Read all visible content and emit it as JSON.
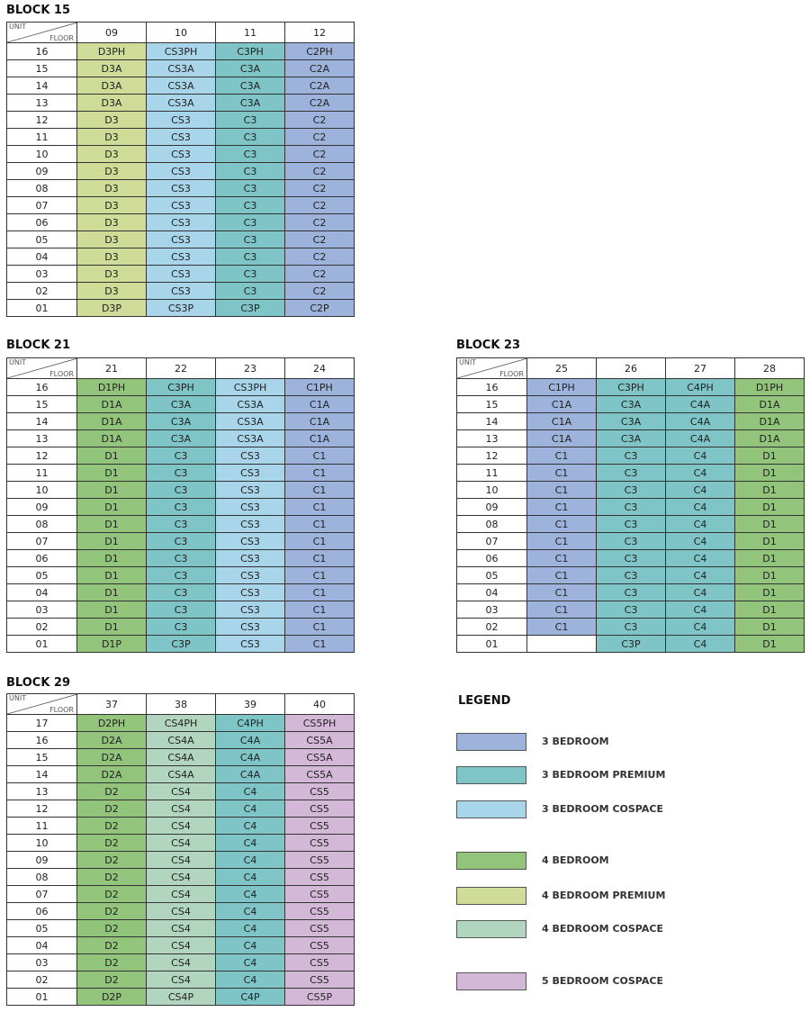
{
  "blocks": [
    {
      "title": "BLOCK 15",
      "unit_label": "UNIT",
      "floor_label": "FLOOR",
      "units": [
        "09",
        "10",
        "11",
        "12"
      ],
      "colors": [
        "#cfdc97",
        "#a9d5ea",
        "#7fc5c7",
        "#9db3dc"
      ],
      "rows": [
        [
          "16",
          "D3PH",
          "CS3PH",
          "C3PH",
          "C2PH"
        ],
        [
          "15",
          "D3A",
          "CS3A",
          "C3A",
          "C2A"
        ],
        [
          "14",
          "D3A",
          "CS3A",
          "C3A",
          "C2A"
        ],
        [
          "13",
          "D3A",
          "CS3A",
          "C3A",
          "C2A"
        ],
        [
          "12",
          "D3",
          "CS3",
          "C3",
          "C2"
        ],
        [
          "11",
          "D3",
          "CS3",
          "C3",
          "C2"
        ],
        [
          "10",
          "D3",
          "CS3",
          "C3",
          "C2"
        ],
        [
          "09",
          "D3",
          "CS3",
          "C3",
          "C2"
        ],
        [
          "08",
          "D3",
          "CS3",
          "C3",
          "C2"
        ],
        [
          "07",
          "D3",
          "CS3",
          "C3",
          "C2"
        ],
        [
          "06",
          "D3",
          "CS3",
          "C3",
          "C2"
        ],
        [
          "05",
          "D3",
          "CS3",
          "C3",
          "C2"
        ],
        [
          "04",
          "D3",
          "CS3",
          "C3",
          "C2"
        ],
        [
          "03",
          "D3",
          "CS3",
          "C3",
          "C2"
        ],
        [
          "02",
          "D3",
          "CS3",
          "C3",
          "C2"
        ],
        [
          "01",
          "D3P",
          "CS3P",
          "C3P",
          "C2P"
        ]
      ]
    },
    {
      "title": "BLOCK 21",
      "unit_label": "UNIT",
      "floor_label": "FLOOR",
      "units": [
        "21",
        "22",
        "23",
        "24"
      ],
      "colors": [
        "#92c47c",
        "#7fc5c7",
        "#a9d5ea",
        "#9db3dc"
      ],
      "rows": [
        [
          "16",
          "D1PH",
          "C3PH",
          "CS3PH",
          "C1PH"
        ],
        [
          "15",
          "D1A",
          "C3A",
          "CS3A",
          "C1A"
        ],
        [
          "14",
          "D1A",
          "C3A",
          "CS3A",
          "C1A"
        ],
        [
          "13",
          "D1A",
          "C3A",
          "CS3A",
          "C1A"
        ],
        [
          "12",
          "D1",
          "C3",
          "CS3",
          "C1"
        ],
        [
          "11",
          "D1",
          "C3",
          "CS3",
          "C1"
        ],
        [
          "10",
          "D1",
          "C3",
          "CS3",
          "C1"
        ],
        [
          "09",
          "D1",
          "C3",
          "CS3",
          "C1"
        ],
        [
          "08",
          "D1",
          "C3",
          "CS3",
          "C1"
        ],
        [
          "07",
          "D1",
          "C3",
          "CS3",
          "C1"
        ],
        [
          "06",
          "D1",
          "C3",
          "CS3",
          "C1"
        ],
        [
          "05",
          "D1",
          "C3",
          "CS3",
          "C1"
        ],
        [
          "04",
          "D1",
          "C3",
          "CS3",
          "C1"
        ],
        [
          "03",
          "D1",
          "C3",
          "CS3",
          "C1"
        ],
        [
          "02",
          "D1",
          "C3",
          "CS3",
          "C1"
        ],
        [
          "01",
          "D1P",
          "C3P",
          "CS3",
          "C1"
        ]
      ]
    },
    {
      "title": "BLOCK 23",
      "unit_label": "UNIT",
      "floor_label": "FLOOR",
      "units": [
        "25",
        "26",
        "27",
        "28"
      ],
      "colors": [
        "#9db3dc",
        "#7fc5c7",
        "#7fc5c7",
        "#92c47c"
      ],
      "rows": [
        [
          "16",
          "C1PH",
          "C3PH",
          "C4PH",
          "D1PH"
        ],
        [
          "15",
          "C1A",
          "C3A",
          "C4A",
          "D1A"
        ],
        [
          "14",
          "C1A",
          "C3A",
          "C4A",
          "D1A"
        ],
        [
          "13",
          "C1A",
          "C3A",
          "C4A",
          "D1A"
        ],
        [
          "12",
          "C1",
          "C3",
          "C4",
          "D1"
        ],
        [
          "11",
          "C1",
          "C3",
          "C4",
          "D1"
        ],
        [
          "10",
          "C1",
          "C3",
          "C4",
          "D1"
        ],
        [
          "09",
          "C1",
          "C3",
          "C4",
          "D1"
        ],
        [
          "08",
          "C1",
          "C3",
          "C4",
          "D1"
        ],
        [
          "07",
          "C1",
          "C3",
          "C4",
          "D1"
        ],
        [
          "06",
          "C1",
          "C3",
          "C4",
          "D1"
        ],
        [
          "05",
          "C1",
          "C3",
          "C4",
          "D1"
        ],
        [
          "04",
          "C1",
          "C3",
          "C4",
          "D1"
        ],
        [
          "03",
          "C1",
          "C3",
          "C4",
          "D1"
        ],
        [
          "02",
          "C1",
          "C3",
          "C4",
          "D1"
        ],
        [
          "01",
          null,
          "C3P",
          "C4",
          "D1"
        ]
      ]
    },
    {
      "title": "BLOCK 29",
      "unit_label": "UNIT",
      "floor_label": "FLOOR",
      "units": [
        "37",
        "38",
        "39",
        "40"
      ],
      "colors": [
        "#92c47c",
        "#b2d5bf",
        "#7fc5c7",
        "#d3b8d8"
      ],
      "rows": [
        [
          "17",
          "D2PH",
          "CS4PH",
          "C4PH",
          "CS5PH"
        ],
        [
          "16",
          "D2A",
          "CS4A",
          "C4A",
          "CS5A"
        ],
        [
          "15",
          "D2A",
          "CS4A",
          "C4A",
          "CS5A"
        ],
        [
          "14",
          "D2A",
          "CS4A",
          "C4A",
          "CS5A"
        ],
        [
          "13",
          "D2",
          "CS4",
          "C4",
          "CS5"
        ],
        [
          "12",
          "D2",
          "CS4",
          "C4",
          "CS5"
        ],
        [
          "11",
          "D2",
          "CS4",
          "C4",
          "CS5"
        ],
        [
          "10",
          "D2",
          "CS4",
          "C4",
          "CS5"
        ],
        [
          "09",
          "D2",
          "CS4",
          "C4",
          "CS5"
        ],
        [
          "08",
          "D2",
          "CS4",
          "C4",
          "CS5"
        ],
        [
          "07",
          "D2",
          "CS4",
          "C4",
          "CS5"
        ],
        [
          "06",
          "D2",
          "CS4",
          "C4",
          "CS5"
        ],
        [
          "05",
          "D2",
          "CS4",
          "C4",
          "CS5"
        ],
        [
          "04",
          "D2",
          "CS4",
          "C4",
          "CS5"
        ],
        [
          "03",
          "D2",
          "CS4",
          "C4",
          "CS5"
        ],
        [
          "02",
          "D2",
          "CS4",
          "C4",
          "CS5"
        ],
        [
          "01",
          "D2P",
          "CS4P",
          "C4P",
          "CS5P"
        ]
      ]
    }
  ],
  "legend": {
    "title": "LEGEND",
    "items": [
      {
        "label": "3 BEDROOM",
        "color": "#9db3dc"
      },
      {
        "label": "3 BEDROOM PREMIUM",
        "color": "#7fc5c7"
      },
      {
        "label": "3 BEDROOM COSPACE",
        "color": "#a9d5ea"
      },
      {
        "label": "4 BEDROOM",
        "color": "#92c47c"
      },
      {
        "label": "4 BEDROOM PREMIUM",
        "color": "#cfdc97"
      },
      {
        "label": "4 BEDROOM COSPACE",
        "color": "#b2d5bf"
      },
      {
        "label": "5 BEDROOM COSPACE",
        "color": "#d3b8d8"
      }
    ]
  }
}
